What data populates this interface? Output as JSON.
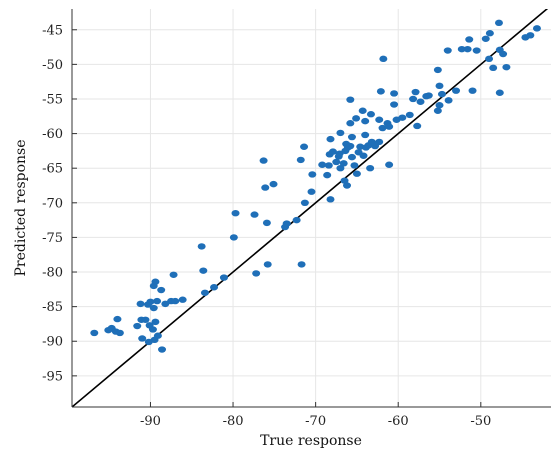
{
  "chart_data": {
    "type": "scatter",
    "title": "",
    "xlabel": "True response",
    "ylabel": "Predicted response",
    "xlim": [
      -99.5,
      -41.5
    ],
    "ylim": [
      -99.5,
      -42.0
    ],
    "xticks": [
      -90,
      -80,
      -70,
      -60,
      -50
    ],
    "yticks": [
      -45,
      -50,
      -55,
      -60,
      -65,
      -70,
      -75,
      -80,
      -85,
      -90,
      -95
    ],
    "grid": true,
    "colors": {
      "points": "#1f6fb8",
      "reference_line": "#000000",
      "grid": "#e6e6e6",
      "axis": "#333333"
    },
    "reference_line": {
      "type": "perfect-prediction",
      "from": [
        -99.5,
        -99.5
      ],
      "to": [
        -41.5,
        -41.5
      ]
    },
    "series": [
      {
        "points": [
          [
            -96.8,
            -88.8
          ],
          [
            -95.1,
            -88.4
          ],
          [
            -94.7,
            -88.1
          ],
          [
            -94.2,
            -88.6
          ],
          [
            -93.7,
            -88.8
          ],
          [
            -94.0,
            -86.8
          ],
          [
            -91.6,
            -87.8
          ],
          [
            -91.1,
            -86.9
          ],
          [
            -90.6,
            -86.9
          ],
          [
            -90.1,
            -87.7
          ],
          [
            -89.7,
            -88.3
          ],
          [
            -89.4,
            -87.2
          ],
          [
            -91.2,
            -84.6
          ],
          [
            -90.3,
            -84.7
          ],
          [
            -90.0,
            -84.3
          ],
          [
            -89.6,
            -85.2
          ],
          [
            -89.2,
            -84.2
          ],
          [
            -88.2,
            -84.6
          ],
          [
            -87.5,
            -84.2
          ],
          [
            -87.0,
            -84.2
          ],
          [
            -86.1,
            -84.0
          ],
          [
            -88.7,
            -82.6
          ],
          [
            -89.6,
            -82.0
          ],
          [
            -89.4,
            -81.4
          ],
          [
            -87.2,
            -80.4
          ],
          [
            -91.0,
            -89.6
          ],
          [
            -89.5,
            -89.8
          ],
          [
            -89.1,
            -89.2
          ],
          [
            -90.2,
            -90.1
          ],
          [
            -88.6,
            -91.2
          ],
          [
            -83.4,
            -83.0
          ],
          [
            -82.3,
            -82.2
          ],
          [
            -81.1,
            -80.8
          ],
          [
            -83.6,
            -79.8
          ],
          [
            -83.8,
            -76.3
          ],
          [
            -79.9,
            -75.0
          ],
          [
            -77.2,
            -80.2
          ],
          [
            -75.8,
            -78.9
          ],
          [
            -79.7,
            -71.5
          ],
          [
            -77.4,
            -71.7
          ],
          [
            -75.9,
            -72.9
          ],
          [
            -76.1,
            -67.8
          ],
          [
            -75.1,
            -67.3
          ],
          [
            -76.3,
            -63.9
          ],
          [
            -73.7,
            -73.5
          ],
          [
            -72.3,
            -72.5
          ],
          [
            -71.7,
            -78.9
          ],
          [
            -71.3,
            -70.0
          ],
          [
            -70.5,
            -68.4
          ],
          [
            -70.4,
            -65.9
          ],
          [
            -71.8,
            -63.8
          ],
          [
            -71.4,
            -61.9
          ],
          [
            -69.2,
            -64.5
          ],
          [
            -68.6,
            -66.0
          ],
          [
            -68.4,
            -64.6
          ],
          [
            -68.3,
            -63.0
          ],
          [
            -67.9,
            -62.6
          ],
          [
            -67.5,
            -64.1
          ],
          [
            -67.2,
            -63.3
          ],
          [
            -67.0,
            -65.0
          ],
          [
            -66.6,
            -64.3
          ],
          [
            -66.4,
            -62.5
          ],
          [
            -66.1,
            -62.0
          ],
          [
            -65.8,
            -61.8
          ],
          [
            -65.6,
            -63.4
          ],
          [
            -65.3,
            -64.6
          ],
          [
            -65.0,
            -65.8
          ],
          [
            -64.8,
            -62.7
          ],
          [
            -64.6,
            -61.9
          ],
          [
            -64.2,
            -63.2
          ],
          [
            -63.9,
            -62.0
          ],
          [
            -63.6,
            -61.7
          ],
          [
            -63.2,
            -61.2
          ],
          [
            -62.8,
            -61.8
          ],
          [
            -62.3,
            -61.2
          ],
          [
            -67.1,
            -62.9
          ],
          [
            -66.3,
            -61.5
          ],
          [
            -65.6,
            -60.5
          ],
          [
            -68.2,
            -69.5
          ],
          [
            -68.2,
            -60.8
          ],
          [
            -67.0,
            -59.9
          ],
          [
            -65.8,
            -58.5
          ],
          [
            -65.1,
            -57.8
          ],
          [
            -64.3,
            -56.7
          ],
          [
            -64.0,
            -58.2
          ],
          [
            -63.3,
            -57.2
          ],
          [
            -62.3,
            -58.0
          ],
          [
            -61.3,
            -58.5
          ],
          [
            -61.9,
            -59.2
          ],
          [
            -61.1,
            -59.0
          ],
          [
            -63.4,
            -65.0
          ],
          [
            -61.1,
            -64.5
          ],
          [
            -66.5,
            -66.8
          ],
          [
            -66.2,
            -67.5
          ],
          [
            -65.8,
            -55.1
          ],
          [
            -62.1,
            -53.9
          ],
          [
            -61.8,
            -49.2
          ],
          [
            -60.5,
            -55.8
          ],
          [
            -60.2,
            -58.0
          ],
          [
            -59.5,
            -57.7
          ],
          [
            -58.6,
            -57.3
          ],
          [
            -58.2,
            -55.0
          ],
          [
            -57.9,
            -54.0
          ],
          [
            -57.7,
            -58.9
          ],
          [
            -57.3,
            -55.4
          ],
          [
            -56.3,
            -54.5
          ],
          [
            -55.0,
            -55.9
          ],
          [
            -55.2,
            -56.7
          ],
          [
            -55.2,
            -50.8
          ],
          [
            -54.7,
            -54.3
          ],
          [
            -53.9,
            -55.2
          ],
          [
            -53.0,
            -53.8
          ],
          [
            -52.3,
            -47.8
          ],
          [
            -51.6,
            -47.8
          ],
          [
            -51.4,
            -46.4
          ],
          [
            -51.0,
            -53.8
          ],
          [
            -50.5,
            -48.0
          ],
          [
            -49.4,
            -46.3
          ],
          [
            -49.0,
            -49.2
          ],
          [
            -48.9,
            -45.5
          ],
          [
            -47.8,
            -44.0
          ],
          [
            -48.5,
            -50.5
          ],
          [
            -47.7,
            -47.9
          ],
          [
            -47.3,
            -48.5
          ],
          [
            -46.9,
            -50.4
          ],
          [
            -47.7,
            -54.1
          ],
          [
            -44.6,
            -46.1
          ],
          [
            -44.0,
            -45.8
          ],
          [
            -43.2,
            -44.8
          ],
          [
            -56.6,
            -54.6
          ],
          [
            -54.0,
            -48.0
          ],
          [
            -55.0,
            -53.1
          ],
          [
            -60.5,
            -54.2
          ],
          [
            -64.0,
            -60.2
          ],
          [
            -73.5,
            -73.0
          ]
        ]
      }
    ]
  }
}
